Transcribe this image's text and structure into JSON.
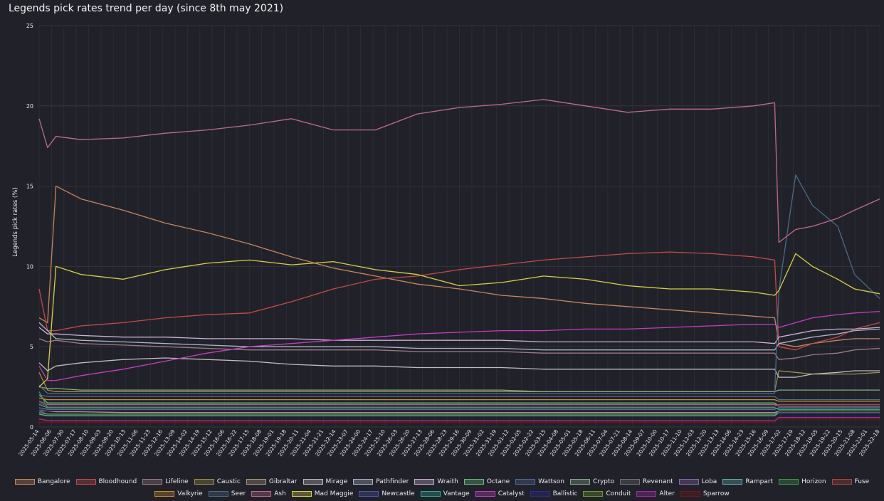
{
  "chart_data": {
    "type": "line",
    "title": "Legends pick rates trend per day (since 8th may 2021)",
    "xlabel": "",
    "ylabel": "Legends pick rates (%)",
    "ylim": [
      0,
      25
    ],
    "yticks": [
      "0",
      "5",
      "10",
      "15",
      "20",
      "25"
    ],
    "grid": true,
    "legend_position": "bottom",
    "x_tick_labels": [
      "2025-05-14",
      "2025-06-06",
      "2025-07-30",
      "2025-07-17",
      "2025-08-10",
      "2025-09-03",
      "2025-09-20",
      "2025-10-13",
      "2025-11-06",
      "2025-11-23",
      "2025-12-16",
      "2025-13-09",
      "2025-14-02",
      "2025-14-19",
      "2025-15-12",
      "2025-16-06",
      "2025-16-22",
      "2025-17-15",
      "2025-18-08",
      "2025-19-01",
      "2025-19-18",
      "2025-20-11",
      "2025-21-04",
      "2025-21-21",
      "2025-22-14",
      "2025-23-07",
      "2025-24-00",
      "2025-24-17",
      "2025-25-10",
      "2025-26-03",
      "2025-26-20",
      "2025-27-13",
      "2025-28-06",
      "2025-28-23",
      "2025-29-16",
      "2025-30-09",
      "2025-31-02",
      "2025-31-19",
      "2025-01-12",
      "2025-02-05",
      "2025-02-22",
      "2025-03-15",
      "2025-04-08",
      "2025-05-01",
      "2025-05-18",
      "2025-06-11",
      "2025-07-04",
      "2025-07-21",
      "2025-08-14",
      "2025-09-07",
      "2025-10-00",
      "2025-10-17",
      "2025-11-10",
      "2025-12-03",
      "2025-12-20",
      "2025-13-13",
      "2025-14-06",
      "2025-14-23",
      "2025-15-16",
      "2025-16-09",
      "2025-17-02",
      "2025-17-19",
      "2025-18-12",
      "2025-19-05",
      "2025-19-22",
      "2025-20-15",
      "2025-21-08",
      "2025-22-01",
      "2025-22-18"
    ],
    "x_norm": [
      0,
      0.01,
      0.02,
      0.05,
      0.1,
      0.15,
      0.2,
      0.25,
      0.3,
      0.35,
      0.4,
      0.45,
      0.5,
      0.55,
      0.6,
      0.65,
      0.7,
      0.75,
      0.8,
      0.85,
      0.875,
      0.88,
      0.9,
      0.92,
      0.95,
      0.97,
      1.0
    ],
    "series": [
      {
        "name": "Bangalore",
        "color": "#c8845e",
        "values": [
          6.8,
          6.5,
          15.0,
          14.2,
          13.5,
          12.7,
          12.1,
          11.4,
          10.6,
          9.9,
          9.4,
          8.9,
          8.6,
          8.2,
          8.0,
          7.7,
          7.5,
          7.3,
          7.1,
          6.9,
          6.8,
          5.2,
          5.0,
          5.2,
          5.4,
          5.5,
          5.5
        ]
      },
      {
        "name": "Bloodhound",
        "color": "#c54a4a",
        "values": [
          8.6,
          6.0,
          6.0,
          6.3,
          6.5,
          6.8,
          7.0,
          7.1,
          7.8,
          8.6,
          9.2,
          9.4,
          9.8,
          10.1,
          10.4,
          10.6,
          10.8,
          10.9,
          10.8,
          10.6,
          10.4,
          5.0,
          4.8,
          5.2,
          5.6,
          6.1,
          6.5
        ]
      },
      {
        "name": "Lifeline",
        "color": "#9a7a86",
        "values": [
          5.5,
          5.3,
          5.4,
          5.2,
          5.1,
          5.0,
          4.9,
          4.8,
          4.8,
          4.8,
          4.8,
          4.7,
          4.7,
          4.7,
          4.6,
          4.6,
          4.6,
          4.6,
          4.6,
          4.6,
          4.6,
          4.2,
          4.3,
          4.5,
          4.6,
          4.8,
          4.9
        ]
      },
      {
        "name": "Caustic",
        "color": "#9c8f4a",
        "values": [
          3.4,
          2.3,
          2.2,
          2.2,
          2.2,
          2.2,
          2.2,
          2.2,
          2.2,
          2.2,
          2.2,
          2.2,
          2.2,
          2.2,
          2.2,
          2.2,
          2.2,
          2.2,
          2.2,
          2.2,
          2.2,
          3.5,
          3.4,
          3.3,
          3.3,
          3.3,
          3.4
        ]
      },
      {
        "name": "Gibraltar",
        "color": "#a89a7a",
        "values": [
          1.0,
          1.0,
          0.95,
          0.95,
          0.9,
          0.9,
          0.9,
          0.9,
          0.9,
          0.9,
          0.9,
          0.9,
          0.9,
          0.9,
          0.9,
          0.9,
          0.9,
          0.9,
          0.9,
          0.9,
          0.9,
          1.0,
          1.0,
          1.0,
          1.0,
          1.0,
          1.0
        ]
      },
      {
        "name": "Mirage",
        "color": "#bdbdbd",
        "values": [
          4.0,
          3.5,
          3.8,
          4.0,
          4.2,
          4.3,
          4.2,
          4.1,
          3.9,
          3.8,
          3.8,
          3.7,
          3.7,
          3.7,
          3.6,
          3.6,
          3.6,
          3.6,
          3.6,
          3.6,
          3.6,
          3.1,
          3.1,
          3.3,
          3.4,
          3.5,
          3.5
        ]
      },
      {
        "name": "Pathfinder",
        "color": "#aab5c8",
        "values": [
          6.5,
          6.0,
          5.5,
          5.4,
          5.3,
          5.2,
          5.1,
          5.0,
          5.0,
          5.0,
          5.0,
          4.9,
          4.9,
          4.9,
          4.8,
          4.8,
          4.8,
          4.8,
          4.8,
          4.8,
          4.8,
          5.2,
          5.4,
          5.6,
          5.8,
          6.0,
          6.1
        ]
      },
      {
        "name": "Wraith",
        "color": "#c9b2d4",
        "values": [
          6.2,
          5.8,
          5.8,
          5.7,
          5.6,
          5.6,
          5.5,
          5.5,
          5.5,
          5.4,
          5.4,
          5.4,
          5.4,
          5.4,
          5.3,
          5.3,
          5.3,
          5.3,
          5.3,
          5.3,
          5.2,
          5.6,
          5.8,
          6.0,
          6.1,
          6.1,
          6.2
        ]
      },
      {
        "name": "Octane",
        "color": "#6ab87a",
        "values": [
          2.0,
          1.5,
          1.5,
          1.5,
          1.5,
          1.5,
          1.5,
          1.5,
          1.5,
          1.5,
          1.5,
          1.5,
          1.5,
          1.5,
          1.5,
          1.5,
          1.5,
          1.5,
          1.5,
          1.5,
          1.5,
          1.3,
          1.3,
          1.3,
          1.3,
          1.3,
          1.3
        ]
      },
      {
        "name": "Wattson",
        "color": "#4e6a9a",
        "values": [
          2.0,
          1.9,
          1.9,
          1.9,
          1.9,
          1.9,
          1.9,
          1.9,
          1.9,
          1.9,
          1.9,
          1.9,
          1.9,
          1.9,
          1.9,
          1.9,
          1.9,
          1.9,
          1.9,
          1.9,
          1.9,
          1.7,
          1.7,
          1.7,
          1.7,
          1.7,
          1.7
        ]
      },
      {
        "name": "Crypto",
        "color": "#8aa88a",
        "values": [
          2.5,
          2.4,
          2.4,
          2.3,
          2.3,
          2.3,
          2.3,
          2.3,
          2.3,
          2.3,
          2.3,
          2.3,
          2.3,
          2.3,
          2.2,
          2.2,
          2.2,
          2.2,
          2.2,
          2.2,
          2.2,
          2.3,
          2.3,
          2.3,
          2.3,
          2.3,
          2.3
        ]
      },
      {
        "name": "Revenant",
        "color": "#707078",
        "values": [
          1.2,
          1.1,
          1.1,
          1.1,
          1.1,
          1.1,
          1.1,
          1.1,
          1.1,
          1.1,
          1.1,
          1.1,
          1.1,
          1.1,
          1.1,
          1.1,
          1.1,
          1.1,
          1.1,
          1.1,
          1.1,
          1.2,
          1.2,
          1.2,
          1.2,
          1.2,
          1.2
        ]
      },
      {
        "name": "Loba",
        "color": "#8a6ab0",
        "values": [
          1.6,
          1.4,
          1.4,
          1.4,
          1.4,
          1.4,
          1.4,
          1.4,
          1.4,
          1.4,
          1.4,
          1.4,
          1.4,
          1.4,
          1.4,
          1.4,
          1.4,
          1.4,
          1.4,
          1.4,
          1.4,
          1.3,
          1.3,
          1.3,
          1.3,
          1.3,
          1.3
        ]
      },
      {
        "name": "Rampart",
        "color": "#5ab0b0",
        "values": [
          0.8,
          0.7,
          0.7,
          0.7,
          0.7,
          0.7,
          0.7,
          0.7,
          0.7,
          0.7,
          0.7,
          0.7,
          0.7,
          0.7,
          0.7,
          0.7,
          0.7,
          0.7,
          0.7,
          0.7,
          0.7,
          0.9,
          0.9,
          0.9,
          0.9,
          0.9,
          0.9
        ]
      },
      {
        "name": "Horizon",
        "color": "#3a9a4a",
        "values": [
          2.2,
          1.2,
          1.2,
          1.2,
          1.2,
          1.2,
          1.2,
          1.2,
          1.2,
          1.2,
          1.2,
          1.2,
          1.2,
          1.2,
          1.2,
          1.2,
          1.2,
          1.2,
          1.2,
          1.2,
          1.2,
          1.1,
          1.1,
          1.1,
          1.1,
          1.1,
          1.1
        ]
      },
      {
        "name": "Fuse",
        "color": "#a8463e",
        "values": [
          1.5,
          1.3,
          1.3,
          1.3,
          1.3,
          1.3,
          1.3,
          1.3,
          1.3,
          1.3,
          1.3,
          1.3,
          1.3,
          1.3,
          1.3,
          1.3,
          1.3,
          1.3,
          1.3,
          1.3,
          1.3,
          1.4,
          1.4,
          1.4,
          1.4,
          1.4,
          1.4
        ]
      },
      {
        "name": "Valkyrie",
        "color": "#c88a2a",
        "values": [
          1.8,
          1.7,
          1.7,
          1.7,
          1.7,
          1.7,
          1.7,
          1.7,
          1.7,
          1.7,
          1.7,
          1.7,
          1.7,
          1.7,
          1.7,
          1.7,
          1.7,
          1.7,
          1.7,
          1.7,
          1.7,
          1.6,
          1.6,
          1.6,
          1.6,
          1.6,
          1.6
        ]
      },
      {
        "name": "Seer",
        "color": "#4a6a86",
        "values": [
          2.6,
          2.1,
          2.1,
          2.1,
          2.1,
          2.1,
          2.1,
          2.1,
          2.1,
          2.1,
          2.1,
          2.1,
          2.1,
          2.1,
          2.1,
          2.1,
          2.1,
          2.1,
          2.1,
          2.1,
          2.1,
          8.5,
          15.7,
          13.8,
          12.5,
          9.5,
          8.0
        ]
      },
      {
        "name": "Ash",
        "color": "#c06a8a",
        "values": [
          19.2,
          17.4,
          18.1,
          17.9,
          18.0,
          18.3,
          18.5,
          18.8,
          19.2,
          18.5,
          18.5,
          19.5,
          19.9,
          20.1,
          20.4,
          20.0,
          19.6,
          19.8,
          19.8,
          20.0,
          20.2,
          11.5,
          12.3,
          12.5,
          13.0,
          13.5,
          14.2
        ]
      },
      {
        "name": "Mad Maggie",
        "color": "#d8d048",
        "values": [
          2.5,
          3.0,
          10.0,
          9.5,
          9.2,
          9.8,
          10.2,
          10.4,
          10.1,
          10.3,
          9.8,
          9.5,
          8.8,
          9.0,
          9.4,
          9.2,
          8.8,
          8.6,
          8.6,
          8.4,
          8.2,
          8.5,
          10.8,
          10.0,
          9.2,
          8.6,
          8.3
        ]
      },
      {
        "name": "Newcastle",
        "color": "#4a58a8",
        "values": [
          1.0,
          0.8,
          0.8,
          0.8,
          0.8,
          0.8,
          0.8,
          0.8,
          0.8,
          0.8,
          0.8,
          0.8,
          0.8,
          0.8,
          0.8,
          0.8,
          0.8,
          0.8,
          0.8,
          0.8,
          0.8,
          0.9,
          0.9,
          0.9,
          0.9,
          0.9,
          0.9
        ]
      },
      {
        "name": "Vantage",
        "color": "#2aa896",
        "values": [
          1.4,
          1.2,
          1.2,
          1.2,
          1.2,
          1.2,
          1.2,
          1.2,
          1.2,
          1.2,
          1.2,
          1.2,
          1.2,
          1.2,
          1.2,
          1.2,
          1.2,
          1.2,
          1.2,
          1.2,
          1.2,
          1.1,
          1.1,
          1.1,
          1.1,
          1.1,
          1.1
        ]
      },
      {
        "name": "Catalyst",
        "color": "#c43cc4",
        "values": [
          3.8,
          2.9,
          2.9,
          3.2,
          3.6,
          4.1,
          4.6,
          5.0,
          5.2,
          5.4,
          5.6,
          5.8,
          5.9,
          6.0,
          6.0,
          6.1,
          6.1,
          6.2,
          6.3,
          6.4,
          6.4,
          6.2,
          6.5,
          6.8,
          7.0,
          7.1,
          7.2
        ]
      },
      {
        "name": "Ballistic",
        "color": "#2a2a9a",
        "values": [
          1.1,
          1.0,
          1.0,
          1.0,
          1.0,
          1.0,
          1.0,
          1.0,
          1.0,
          1.0,
          1.0,
          1.0,
          1.0,
          1.0,
          1.0,
          1.0,
          1.0,
          1.0,
          1.0,
          1.0,
          1.0,
          1.0,
          1.0,
          1.0,
          1.0,
          1.0,
          1.0
        ]
      },
      {
        "name": "Conduit",
        "color": "#6a9a2a",
        "values": [
          0.9,
          0.8,
          0.8,
          0.8,
          0.8,
          0.8,
          0.8,
          0.8,
          0.8,
          0.8,
          0.8,
          0.8,
          0.8,
          0.8,
          0.8,
          0.8,
          0.8,
          0.8,
          0.8,
          0.8,
          0.8,
          1.0,
          1.0,
          1.0,
          1.0,
          1.0,
          1.0
        ]
      },
      {
        "name": "Alter",
        "color": "#a42aa4",
        "values": [
          0.5,
          0.4,
          0.4,
          0.4,
          0.4,
          0.4,
          0.4,
          0.4,
          0.4,
          0.4,
          0.4,
          0.4,
          0.4,
          0.4,
          0.4,
          0.4,
          0.4,
          0.4,
          0.4,
          0.4,
          0.4,
          0.6,
          0.6,
          0.6,
          0.6,
          0.6,
          0.6
        ]
      },
      {
        "name": "Sparrow",
        "color": "#7a1414",
        "values": [
          0.3,
          0.3,
          0.3,
          0.3,
          0.3,
          0.3,
          0.3,
          0.3,
          0.3,
          0.3,
          0.3,
          0.3,
          0.3,
          0.3,
          0.3,
          0.3,
          0.3,
          0.3,
          0.3,
          0.3,
          0.3,
          0.5,
          0.5,
          0.5,
          0.5,
          0.5,
          0.5
        ]
      }
    ],
    "legend_rows": [
      [
        "Bangalore",
        "Bloodhound",
        "Lifeline",
        "Caustic",
        "Gibraltar",
        "Mirage",
        "Pathfinder",
        "Wraith",
        "Octane",
        "Wattson",
        "Crypto",
        "Revenant",
        "Loba",
        "Rampart",
        "Horizon",
        "Fuse"
      ],
      [
        "Valkyrie",
        "Seer",
        "Ash",
        "Mad Maggie",
        "Newcastle",
        "Vantage",
        "Catalyst",
        "Ballistic",
        "Conduit",
        "Alter",
        "Sparrow"
      ]
    ]
  }
}
